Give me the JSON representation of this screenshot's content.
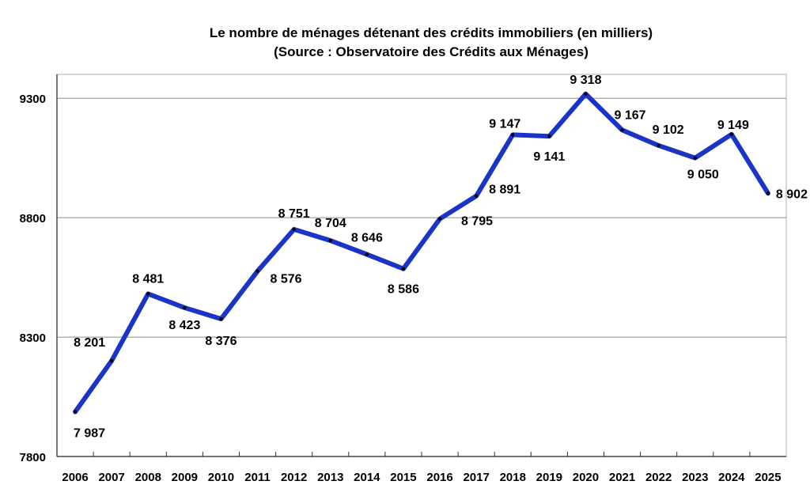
{
  "chart_data": {
    "type": "line",
    "title": "Le nombre de ménages détenant des crédits immobiliers (en milliers)",
    "subtitle": "(Source : Observatoire des Crédits aux Ménages)",
    "xlabel": "",
    "ylabel": "",
    "categories": [
      "2006",
      "2007",
      "2008",
      "2009",
      "2010",
      "2011",
      "2012",
      "2013",
      "2014",
      "2015",
      "2016",
      "2017",
      "2018",
      "2019",
      "2020",
      "2021",
      "2022",
      "2023",
      "2024",
      "2025"
    ],
    "values": [
      7987,
      8201,
      8481,
      8423,
      8376,
      8576,
      8751,
      8704,
      8646,
      8586,
      8795,
      8891,
      9147,
      9141,
      9318,
      9167,
      9102,
      9050,
      9149,
      8902
    ],
    "data_labels": [
      "7 987",
      "8 201",
      "8 481",
      "8 423",
      "8 376",
      "8 576",
      "8 751",
      "8 704",
      "8 646",
      "8 586",
      "8 795",
      "8 891",
      "9 147",
      "9 141",
      "9 318",
      "9 167",
      "9 102",
      "9 050",
      "9 149",
      "8 902"
    ],
    "yticks": [
      7800,
      8300,
      8800,
      9300
    ],
    "ylim": [
      7800,
      9400
    ],
    "grid": "horizontal",
    "legend": "none",
    "colors": {
      "line": "#1a34c8",
      "marker": "#000000",
      "grid": "#8c8c8c"
    }
  }
}
